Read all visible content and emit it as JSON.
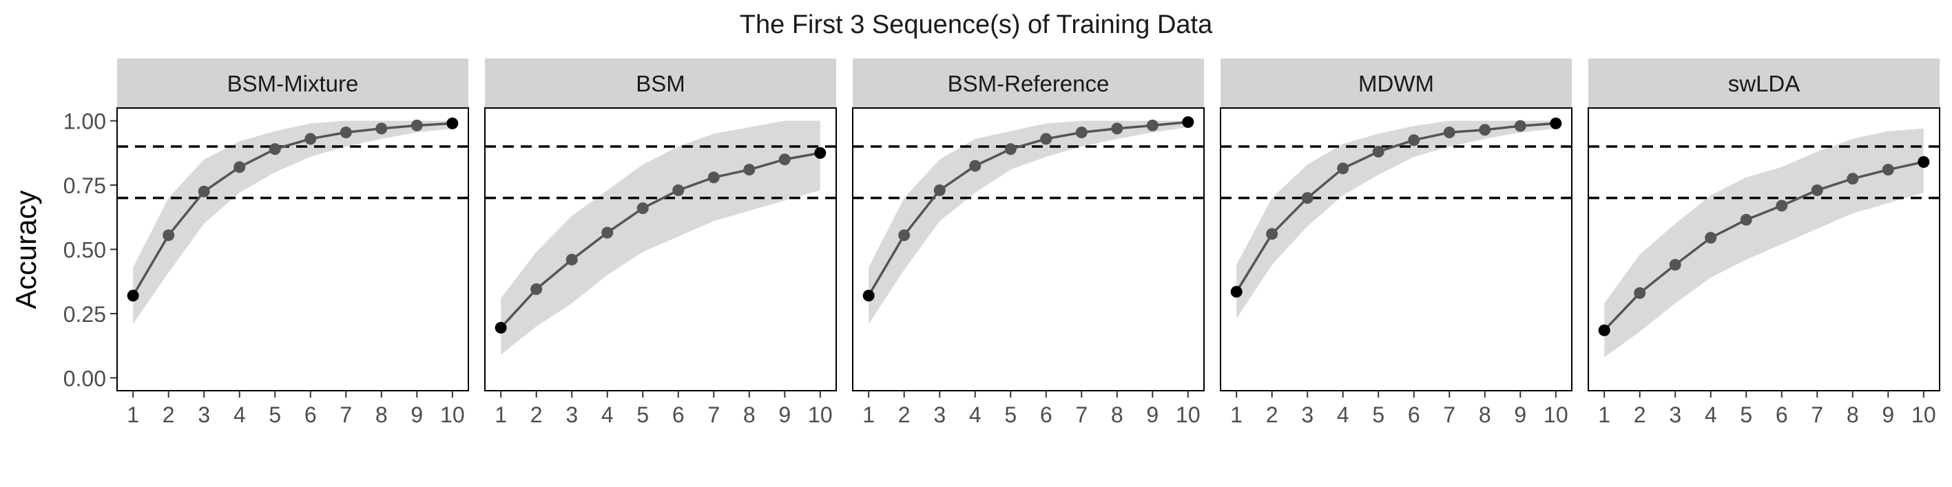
{
  "chart_data": {
    "type": "line",
    "title": "The First 3 Sequence(s) of Training Data",
    "ylabel": "Accuracy",
    "xlabel": "",
    "x": [
      1,
      2,
      3,
      4,
      5,
      6,
      7,
      8,
      9,
      10
    ],
    "x_tick_labels": [
      "1",
      "2",
      "3",
      "4",
      "5",
      "6",
      "7",
      "8",
      "9",
      "10"
    ],
    "xlim": [
      0.55,
      10.45
    ],
    "ylim": [
      -0.05,
      1.05
    ],
    "y_ticks": [
      0,
      0.25,
      0.5,
      0.75,
      1
    ],
    "y_tick_labels": [
      "0.00",
      "0.25",
      "0.50",
      "0.75",
      "1.00"
    ],
    "reference_lines": [
      0.9,
      0.7
    ],
    "grid": false,
    "colors": {
      "line": "#555555",
      "point": "#555555",
      "endpoint": "#000000",
      "ribbon": "#d9d9d9",
      "strip": "#d3d3d3",
      "panel_border": "#000000",
      "reference_line": "#000000"
    },
    "panels": [
      {
        "name": "BSM-Mixture",
        "values": [
          0.32,
          0.555,
          0.725,
          0.82,
          0.89,
          0.93,
          0.955,
          0.97,
          0.982,
          0.99
        ],
        "lower": [
          0.21,
          0.41,
          0.6,
          0.72,
          0.8,
          0.86,
          0.9,
          0.93,
          0.955,
          0.97
        ],
        "upper": [
          0.43,
          0.7,
          0.85,
          0.92,
          0.96,
          0.99,
          1.0,
          1.0,
          1.0,
          1.0
        ]
      },
      {
        "name": "BSM",
        "values": [
          0.195,
          0.345,
          0.46,
          0.565,
          0.66,
          0.73,
          0.78,
          0.81,
          0.85,
          0.875
        ],
        "lower": [
          0.09,
          0.2,
          0.29,
          0.4,
          0.49,
          0.55,
          0.61,
          0.65,
          0.69,
          0.73
        ],
        "upper": [
          0.31,
          0.49,
          0.63,
          0.73,
          0.83,
          0.9,
          0.95,
          0.975,
          1.0,
          1.0
        ]
      },
      {
        "name": "BSM-Reference",
        "values": [
          0.32,
          0.555,
          0.73,
          0.825,
          0.89,
          0.93,
          0.955,
          0.97,
          0.982,
          0.995
        ],
        "lower": [
          0.21,
          0.42,
          0.61,
          0.72,
          0.81,
          0.86,
          0.9,
          0.93,
          0.955,
          0.975
        ],
        "upper": [
          0.43,
          0.7,
          0.85,
          0.93,
          0.96,
          0.99,
          1.0,
          1.0,
          1.0,
          1.0
        ]
      },
      {
        "name": "MDWM",
        "values": [
          0.335,
          0.56,
          0.7,
          0.815,
          0.88,
          0.925,
          0.955,
          0.965,
          0.98,
          0.99
        ],
        "lower": [
          0.23,
          0.44,
          0.59,
          0.71,
          0.79,
          0.86,
          0.9,
          0.93,
          0.955,
          0.97
        ],
        "upper": [
          0.44,
          0.7,
          0.83,
          0.91,
          0.95,
          0.98,
          1.0,
          1.0,
          1.0,
          1.0
        ]
      },
      {
        "name": "swLDA",
        "values": [
          0.185,
          0.33,
          0.44,
          0.545,
          0.615,
          0.67,
          0.73,
          0.775,
          0.81,
          0.84
        ],
        "lower": [
          0.08,
          0.18,
          0.29,
          0.39,
          0.46,
          0.52,
          0.58,
          0.64,
          0.68,
          0.72
        ],
        "upper": [
          0.29,
          0.48,
          0.6,
          0.71,
          0.78,
          0.82,
          0.88,
          0.93,
          0.96,
          0.97
        ]
      }
    ]
  }
}
